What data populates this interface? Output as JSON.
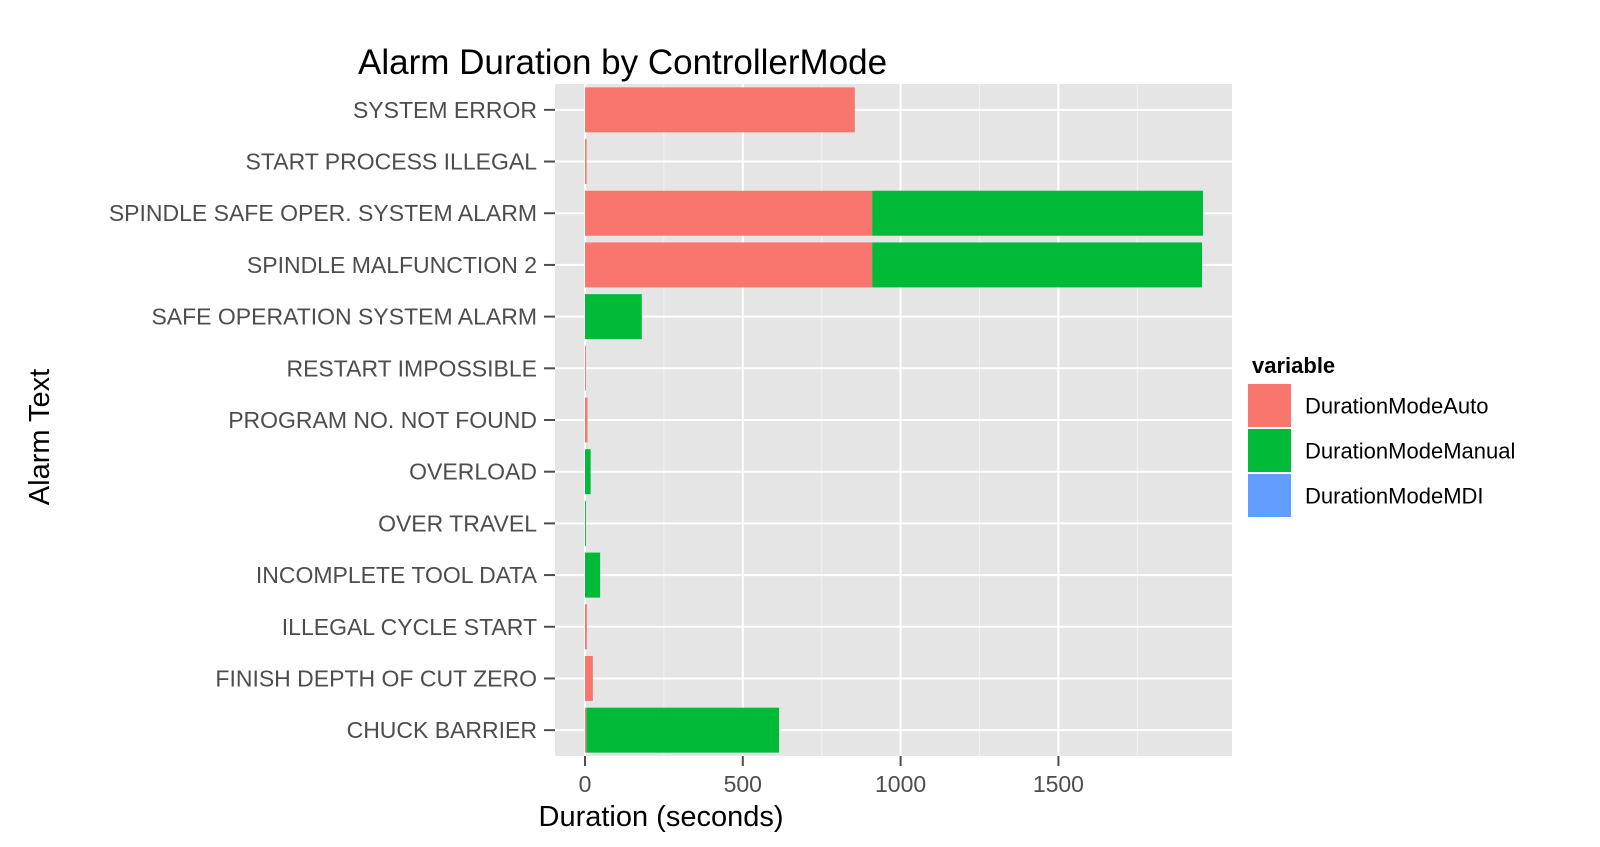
{
  "chart_data": {
    "type": "bar",
    "orientation": "horizontal",
    "stacked": true,
    "title": "Alarm Duration by ControllerMode",
    "xlabel": "Duration (seconds)",
    "ylabel": "Alarm Text",
    "xlim": [
      -95,
      2050
    ],
    "x_ticks": [
      0,
      500,
      1000,
      1500
    ],
    "grid": true,
    "legend": {
      "title": "variable",
      "position": "right"
    },
    "categories": [
      "SYSTEM ERROR",
      "START PROCESS ILLEGAL",
      "SPINDLE SAFE OPER. SYSTEM ALARM",
      "SPINDLE MALFUNCTION 2",
      "SAFE OPERATION SYSTEM ALARM",
      "RESTART IMPOSSIBLE",
      "PROGRAM NO. NOT FOUND",
      "OVERLOAD",
      "OVER TRAVEL",
      "INCOMPLETE TOOL DATA",
      "ILLEGAL CYCLE START",
      "FINISH DEPTH OF CUT ZERO",
      "CHUCK BARRIER"
    ],
    "series": [
      {
        "name": "DurationModeAuto",
        "color": "#F8766D",
        "values": [
          855,
          5,
          910,
          910,
          0,
          3,
          8,
          0,
          0,
          0,
          6,
          25,
          5
        ]
      },
      {
        "name": "DurationModeManual",
        "color": "#00BA38",
        "values": [
          0,
          0,
          1048,
          1045,
          180,
          0,
          0,
          18,
          3,
          48,
          0,
          0,
          610
        ]
      },
      {
        "name": "DurationModeMDI",
        "color": "#619CFF",
        "values": [
          0,
          0,
          0,
          0,
          0,
          0,
          0,
          0,
          0,
          0,
          0,
          0,
          0
        ]
      }
    ]
  }
}
